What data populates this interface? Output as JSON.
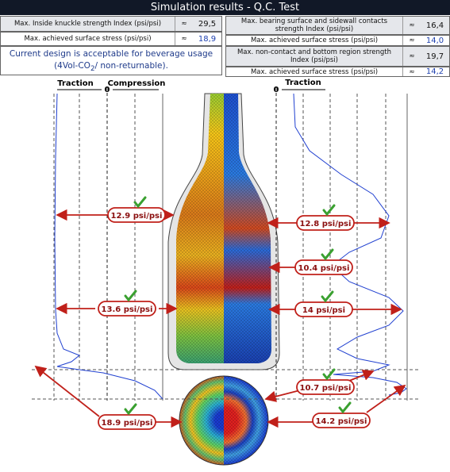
{
  "header": {
    "title": "Simulation results - Q.C. Test"
  },
  "left_table": {
    "rows": [
      [
        "Max. Inside knuckle strength Index (psi/psi)",
        "≈",
        "29,5"
      ],
      [
        "Max. achieved surface stress (psi/psi)",
        "≈",
        "18,9"
      ]
    ],
    "note": [
      "Current design is acceptable for beverage usage (4Vol-CO",
      "2",
      "/ non-returnable)."
    ]
  },
  "right_table": {
    "rows": [
      [
        "Max. bearing surface and sidewall contacts strength Index (psi/psi)",
        "≈",
        "16,4"
      ],
      [
        "Max. achieved surface stress (psi/psi)",
        "≈",
        "14,0"
      ],
      [
        "Max. non-contact and bottom region strength Index (psi/psi)",
        "≈",
        "19,7"
      ],
      [
        "Max. achieved surface stress (psi/psi)",
        "≈",
        "14,2"
      ]
    ]
  },
  "left_plot": {
    "traction": "Traction",
    "compression": "Compression",
    "zero": "0"
  },
  "right_plot": {
    "traction": "Traction",
    "zero": "0"
  },
  "callouts": [
    "12.9 psi/psi",
    "13.6 psi/psi",
    "18.9 psi/psi",
    "12.8 psi/psi",
    "10.4 psi/psi",
    "14 psi/psi",
    "10.7 psi/psi",
    "14.2 psi/psi"
  ]
}
